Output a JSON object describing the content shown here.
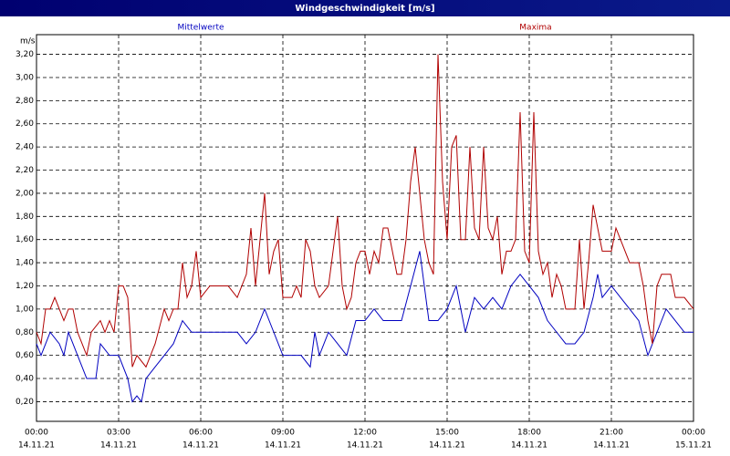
{
  "chart_data": {
    "type": "line",
    "title": "Windgeschwindigkeit [m/s]",
    "ylabel": "m/s",
    "xlim": [
      0,
      1440
    ],
    "xticks": [
      {
        "value": 0,
        "label": "00:00"
      },
      {
        "value": 180,
        "label": "03:00"
      },
      {
        "value": 360,
        "label": "06:00"
      },
      {
        "value": 540,
        "label": "09:00"
      },
      {
        "value": 720,
        "label": "12:00"
      },
      {
        "value": 900,
        "label": "15:00"
      },
      {
        "value": 1080,
        "label": "18:00"
      },
      {
        "value": 1260,
        "label": "21:00"
      },
      {
        "value": 1440,
        "label": "00:00"
      }
    ],
    "xtick_dates": [
      "14.11.21",
      "14.11.21",
      "14.11.21",
      "14.11.21",
      "14.11.21",
      "14.11.21",
      "14.11.21",
      "14.11.21",
      "15.11.21"
    ],
    "ylim": [
      0.03,
      3.37
    ],
    "yticks": [
      {
        "value": 0.2,
        "label": "0,20"
      },
      {
        "value": 0.4,
        "label": "0,40"
      },
      {
        "value": 0.6,
        "label": "0,60"
      },
      {
        "value": 0.8,
        "label": "0,80"
      },
      {
        "value": 1.0,
        "label": "1,00"
      },
      {
        "value": 1.2,
        "label": "1,20"
      },
      {
        "value": 1.4,
        "label": "1,40"
      },
      {
        "value": 1.6,
        "label": "1,60"
      },
      {
        "value": 1.8,
        "label": "1,80"
      },
      {
        "value": 2.0,
        "label": "2,00"
      },
      {
        "value": 2.2,
        "label": "2,20"
      },
      {
        "value": 2.4,
        "label": "2,40"
      },
      {
        "value": 2.6,
        "label": "2,60"
      },
      {
        "value": 2.8,
        "label": "2,80"
      },
      {
        "value": 3.0,
        "label": "3,00"
      },
      {
        "value": 3.2,
        "label": "3,20"
      }
    ],
    "grid": true,
    "series": [
      {
        "name": "Mittelwerte",
        "color": "#0000c0",
        "x": [
          0,
          10,
          30,
          50,
          60,
          70,
          90,
          110,
          130,
          140,
          160,
          180,
          200,
          210,
          220,
          230,
          240,
          260,
          280,
          300,
          320,
          340,
          360,
          380,
          400,
          420,
          440,
          460,
          480,
          500,
          520,
          540,
          560,
          580,
          600,
          610,
          620,
          640,
          660,
          680,
          700,
          720,
          740,
          760,
          780,
          800,
          820,
          840,
          860,
          880,
          900,
          920,
          940,
          960,
          980,
          1000,
          1020,
          1040,
          1060,
          1080,
          1100,
          1120,
          1140,
          1160,
          1180,
          1200,
          1220,
          1230,
          1240,
          1260,
          1280,
          1300,
          1320,
          1340,
          1360,
          1380,
          1400,
          1420,
          1440
        ],
        "values": [
          0.7,
          0.6,
          0.8,
          0.7,
          0.6,
          0.8,
          0.6,
          0.4,
          0.4,
          0.7,
          0.6,
          0.6,
          0.4,
          0.2,
          0.25,
          0.2,
          0.4,
          0.5,
          0.6,
          0.7,
          0.9,
          0.8,
          0.8,
          0.8,
          0.8,
          0.8,
          0.8,
          0.7,
          0.8,
          1.0,
          0.8,
          0.6,
          0.6,
          0.6,
          0.5,
          0.8,
          0.6,
          0.8,
          0.7,
          0.6,
          0.9,
          0.9,
          1.0,
          0.9,
          0.9,
          0.9,
          1.2,
          1.5,
          0.9,
          0.9,
          1.0,
          1.2,
          0.8,
          1.1,
          1.0,
          1.1,
          1.0,
          1.2,
          1.3,
          1.2,
          1.1,
          0.9,
          0.8,
          0.7,
          0.7,
          0.8,
          1.1,
          1.3,
          1.1,
          1.2,
          1.1,
          1.0,
          0.9,
          0.6,
          0.8,
          1.0,
          0.9,
          0.8,
          0.8
        ]
      },
      {
        "name": "Maxima",
        "color": "#b00000",
        "x": [
          0,
          10,
          20,
          30,
          40,
          60,
          70,
          80,
          90,
          100,
          110,
          120,
          140,
          150,
          160,
          170,
          180,
          190,
          200,
          210,
          220,
          240,
          260,
          280,
          290,
          300,
          310,
          320,
          330,
          340,
          350,
          360,
          380,
          400,
          420,
          440,
          460,
          470,
          480,
          500,
          510,
          520,
          530,
          540,
          560,
          570,
          580,
          590,
          600,
          610,
          620,
          640,
          660,
          670,
          680,
          690,
          700,
          710,
          720,
          730,
          740,
          750,
          760,
          770,
          780,
          790,
          800,
          810,
          820,
          830,
          840,
          850,
          860,
          870,
          880,
          890,
          900,
          910,
          920,
          930,
          940,
          950,
          960,
          970,
          980,
          990,
          1000,
          1010,
          1020,
          1030,
          1040,
          1050,
          1060,
          1070,
          1080,
          1090,
          1100,
          1110,
          1120,
          1130,
          1140,
          1150,
          1160,
          1180,
          1190,
          1200,
          1210,
          1220,
          1230,
          1240,
          1260,
          1270,
          1280,
          1300,
          1320,
          1330,
          1340,
          1350,
          1360,
          1370,
          1390,
          1400,
          1420,
          1440
        ],
        "values": [
          0.8,
          0.7,
          1.0,
          1.0,
          1.1,
          0.9,
          1.0,
          1.0,
          0.8,
          0.7,
          0.6,
          0.8,
          0.9,
          0.8,
          0.9,
          0.8,
          1.2,
          1.2,
          1.1,
          0.5,
          0.6,
          0.5,
          0.7,
          1.0,
          0.9,
          1.0,
          1.0,
          1.4,
          1.1,
          1.2,
          1.5,
          1.1,
          1.2,
          1.2,
          1.2,
          1.1,
          1.3,
          1.7,
          1.2,
          2.0,
          1.3,
          1.5,
          1.6,
          1.1,
          1.1,
          1.2,
          1.1,
          1.6,
          1.5,
          1.2,
          1.1,
          1.2,
          1.8,
          1.2,
          1.0,
          1.1,
          1.4,
          1.5,
          1.5,
          1.3,
          1.5,
          1.4,
          1.7,
          1.7,
          1.5,
          1.3,
          1.3,
          1.6,
          2.1,
          2.4,
          2.0,
          1.6,
          1.4,
          1.3,
          3.2,
          2.1,
          1.6,
          2.4,
          2.5,
          1.6,
          1.6,
          2.4,
          1.7,
          1.6,
          2.4,
          1.7,
          1.6,
          1.8,
          1.3,
          1.5,
          1.5,
          1.6,
          2.7,
          1.5,
          1.4,
          2.7,
          1.5,
          1.3,
          1.4,
          1.1,
          1.3,
          1.2,
          1.0,
          1.0,
          1.6,
          1.0,
          1.4,
          1.9,
          1.7,
          1.5,
          1.5,
          1.7,
          1.6,
          1.4,
          1.4,
          1.2,
          0.9,
          0.7,
          1.2,
          1.3,
          1.3,
          1.1,
          1.1,
          1.0
        ]
      }
    ]
  }
}
